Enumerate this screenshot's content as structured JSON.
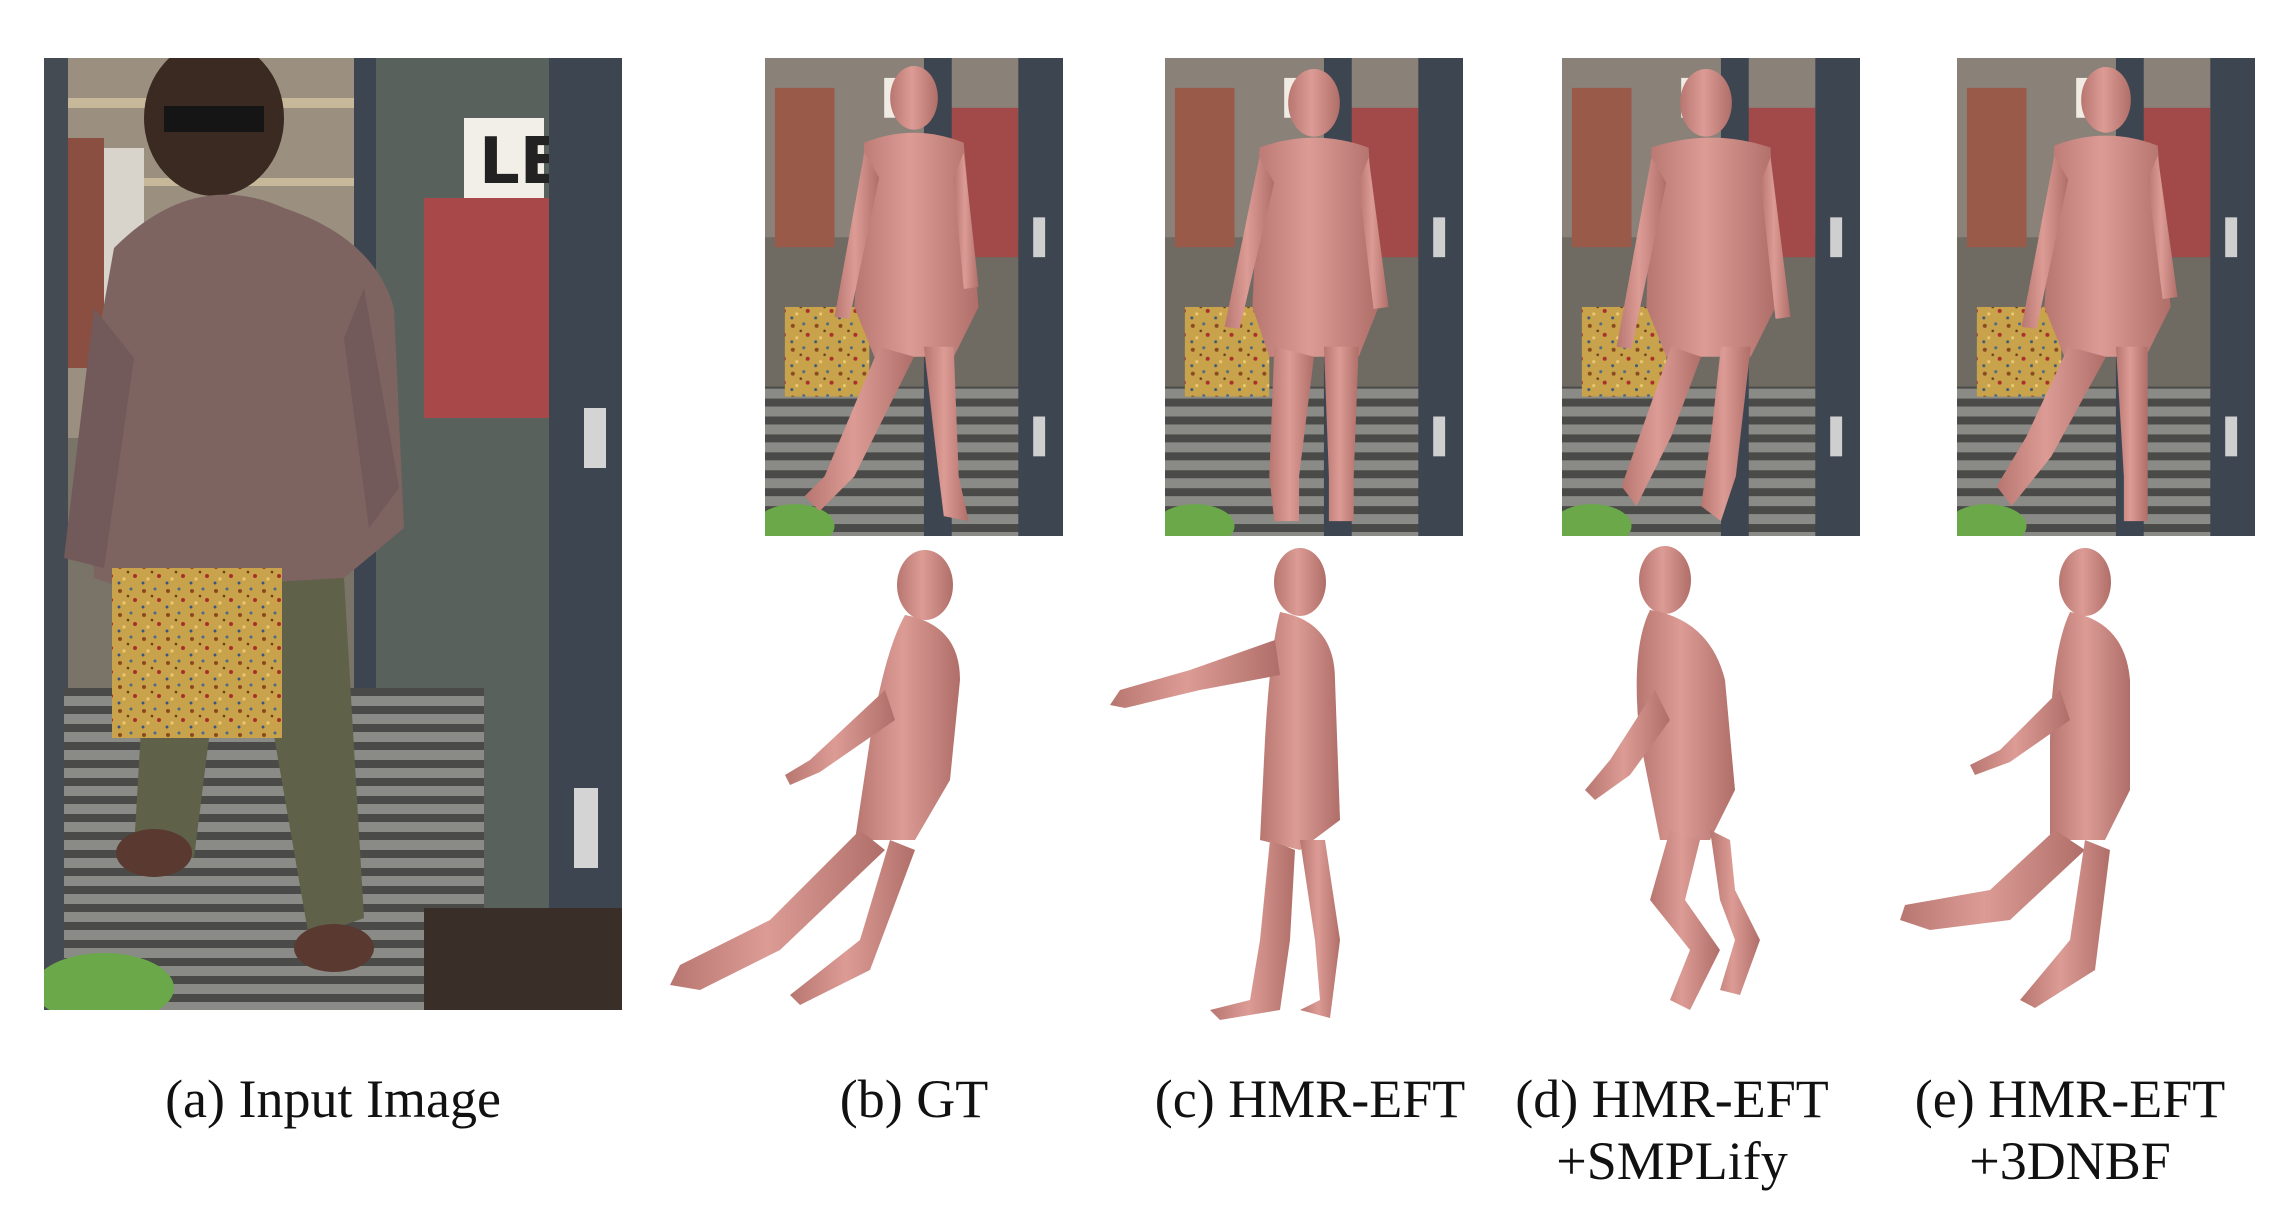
{
  "figure": {
    "captions": {
      "a": {
        "line1": "(a) Input Image"
      },
      "b": {
        "line1": "(b) GT"
      },
      "c": {
        "line1": "(c) HMR-EFT"
      },
      "d": {
        "line1": "(d) HMR-EFT",
        "line2": "+SMPLify"
      },
      "e": {
        "line1": "(e) HMR-EFT",
        "line2": "+3DNBF"
      }
    }
  },
  "colors": {
    "mesh": "#d4908a",
    "mesh_dark": "#b06e69",
    "door_frame": "#3d4650",
    "shirt": "#7d6461",
    "trousers": "#5f6149",
    "occluder": "#c8a04a",
    "background": "#ffffff"
  }
}
